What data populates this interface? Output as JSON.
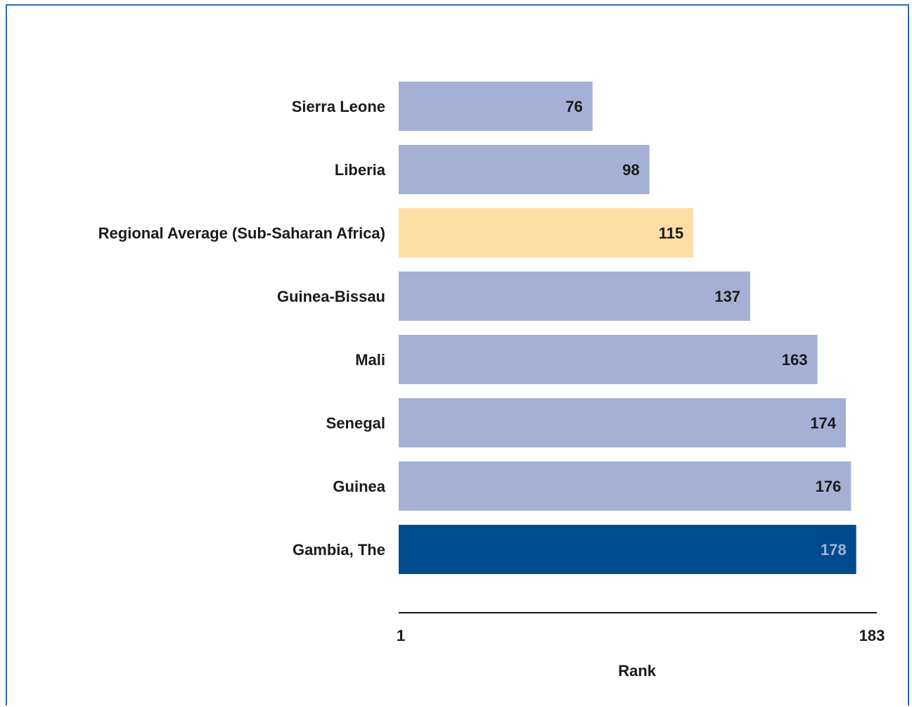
{
  "chart_data": {
    "type": "bar",
    "orientation": "horizontal",
    "categories": [
      "Sierra Leone",
      "Liberia",
      "Regional Average (Sub-Saharan Africa)",
      "Guinea-Bissau",
      "Mali",
      "Senegal",
      "Guinea",
      "Gambia, The"
    ],
    "values": [
      76,
      98,
      115,
      137,
      163,
      174,
      176,
      178
    ],
    "colors": [
      "#a5b0d4",
      "#a5b0d4",
      "#fddea5",
      "#a5b0d4",
      "#a5b0d4",
      "#a5b0d4",
      "#a5b0d4",
      "#004b8d"
    ],
    "value_label_colors": [
      "#1a1a1a",
      "#1a1a1a",
      "#1a1a1a",
      "#1a1a1a",
      "#1a1a1a",
      "#1a1a1a",
      "#1a1a1a",
      "#a5b0d4"
    ],
    "xlabel": "Rank",
    "xlim": [
      1,
      183
    ],
    "x_ticks": [
      "1",
      "183"
    ],
    "grid": false,
    "legend": "none"
  }
}
